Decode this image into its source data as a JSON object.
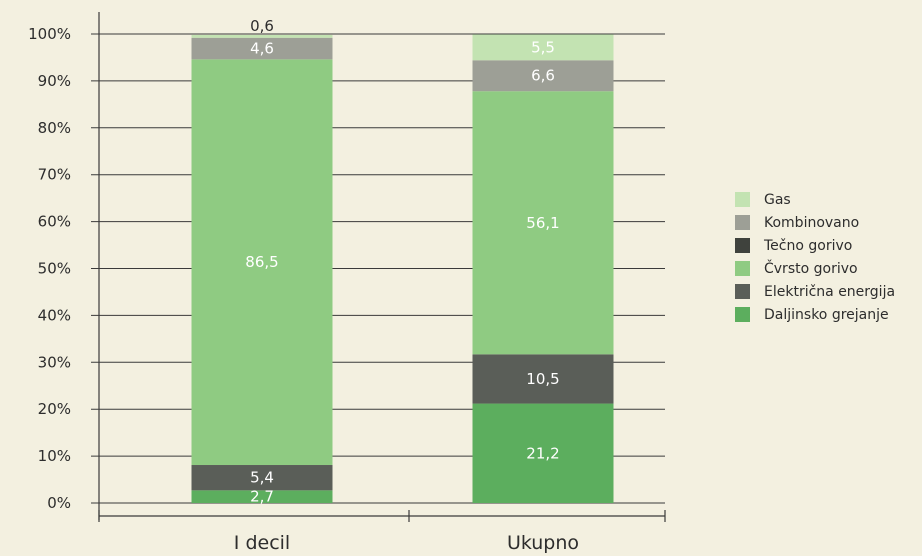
{
  "chart_data": {
    "type": "bar",
    "stacked": true,
    "title": "",
    "xlabel": "",
    "ylabel": "",
    "ylim": [
      0,
      100
    ],
    "yticks": [
      "0%",
      "10%",
      "20%",
      "30%",
      "40%",
      "50%",
      "60%",
      "70%",
      "80%",
      "90%",
      "100%"
    ],
    "categories": [
      "I decil",
      "Ukupno"
    ],
    "series": [
      {
        "name": "Daljinsko grejanje",
        "color": "#5cae5e",
        "values": [
          2.7,
          21.2
        ],
        "labels": [
          "2,7",
          "21,2"
        ]
      },
      {
        "name": "Električna energija",
        "color": "#5a5e58",
        "values": [
          5.4,
          10.5
        ],
        "labels": [
          "5,4",
          "10,5"
        ]
      },
      {
        "name": "Čvrsto gorivo",
        "color": "#8fcb82",
        "values": [
          86.5,
          56.1
        ],
        "labels": [
          "86,5",
          "56,1"
        ]
      },
      {
        "name": "Tečno gorivo",
        "color": "#3f423d",
        "values": [
          0,
          0
        ],
        "labels": [
          "",
          ""
        ]
      },
      {
        "name": "Kombinovano",
        "color": "#9d9f96",
        "values": [
          4.6,
          6.6
        ],
        "labels": [
          "4,6",
          "6,6"
        ]
      },
      {
        "name": "Gas",
        "color": "#c3e3b2",
        "values": [
          0.6,
          5.5
        ],
        "labels": [
          "0,6",
          "5,5"
        ]
      }
    ],
    "legend_position": "right",
    "legend_order": [
      "Gas",
      "Kombinovano",
      "Tečno gorivo",
      "Čvrsto gorivo",
      "Električna energija",
      "Daljinsko grejanje"
    ],
    "grid": true
  }
}
